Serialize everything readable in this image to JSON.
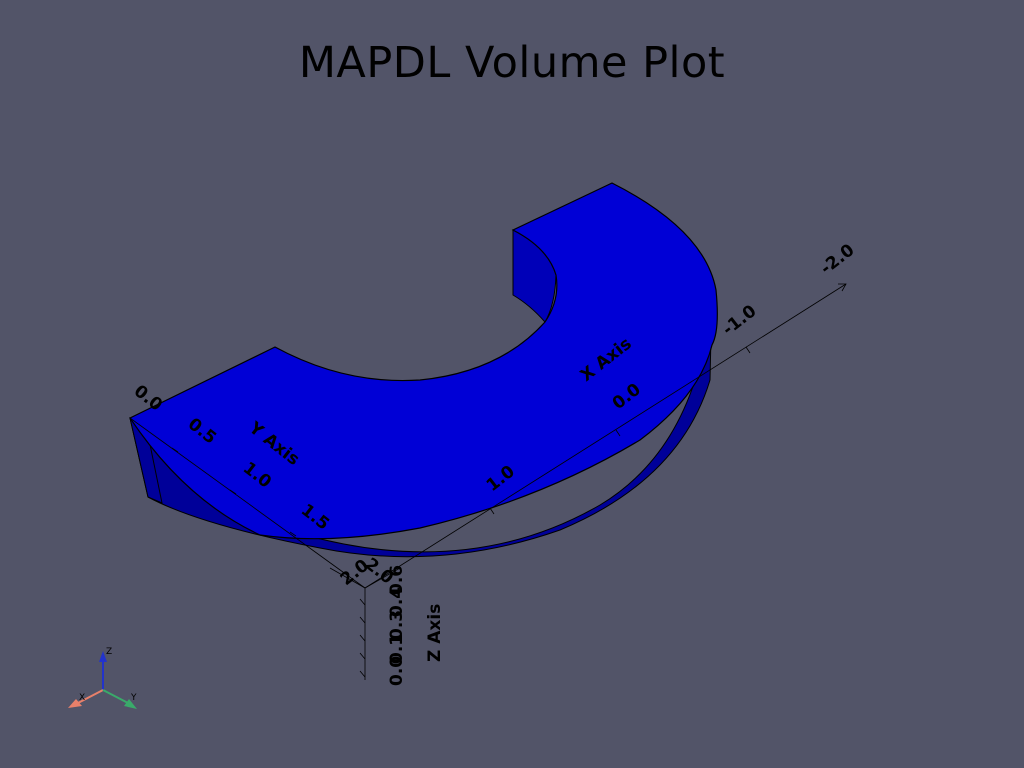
{
  "title": "MAPDL Volume Plot",
  "colors": {
    "background": "#525468",
    "top_face": "#0000d6",
    "side_face": "#000099",
    "inner_face": "#0000b8",
    "edge": "#000000",
    "triad_x": "#e8806a",
    "triad_y": "#3aaa6a",
    "triad_z": "#2233cc"
  },
  "axes": {
    "x": {
      "title": "X Axis",
      "ticks": [
        "1.0",
        "0.0",
        "-1.0",
        "-2.0"
      ]
    },
    "y": {
      "title": "Y Axis",
      "ticks": [
        "0.0",
        "0.5",
        "1.0",
        "1.5",
        "2.0"
      ]
    },
    "z": {
      "title": "Z Axis",
      "ticks": [
        "0.0",
        "0.1",
        "0.3",
        "0.4",
        "0.6"
      ]
    },
    "corner_x_tick": "2.0"
  },
  "triad": {
    "x_label": "X",
    "y_label": "Y",
    "z_label": "Z"
  }
}
